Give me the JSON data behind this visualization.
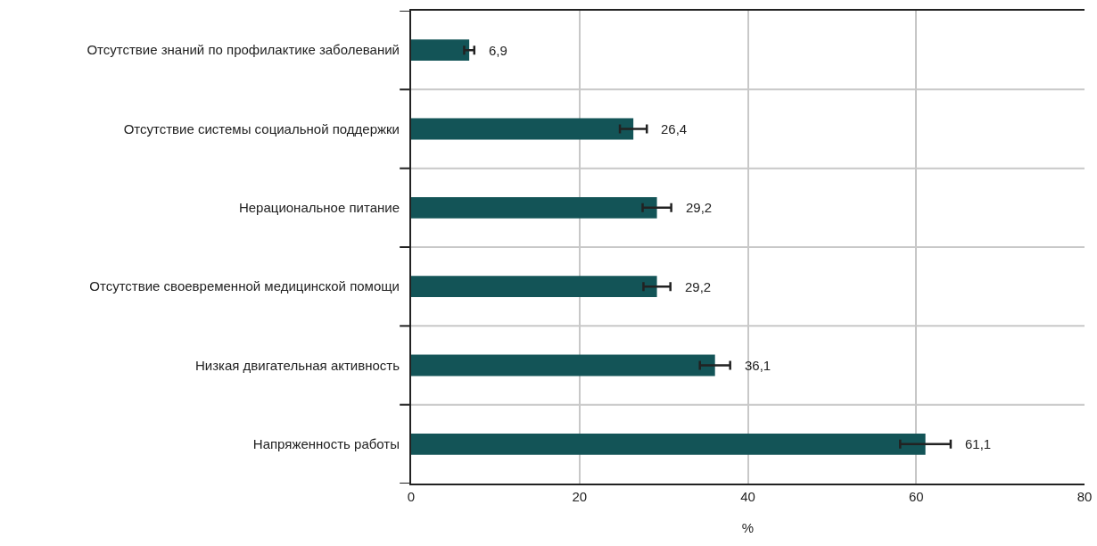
{
  "chart_data": {
    "type": "bar",
    "orientation": "horizontal",
    "xlabel": "%",
    "categories": [
      "Отсутствие знаний по профилактике заболеваний",
      "Отсутствие системы социальной поддержки",
      "Нерациональное питание",
      "Отсутствие своевременной медицинской помощи",
      "Низкая двигательная активность",
      "Напряженность работы"
    ],
    "values": [
      6.9,
      26.4,
      29.2,
      29.2,
      36.1,
      61.1
    ],
    "errors": [
      0.6,
      1.6,
      1.7,
      1.6,
      1.8,
      3.0
    ],
    "value_labels": [
      "6,9",
      "26,4",
      "29,2",
      "29,2",
      "36,1",
      "61,1"
    ],
    "color": "#135457",
    "xlim": [
      0,
      80
    ],
    "xticks": [
      0,
      20,
      40,
      60,
      80
    ],
    "grid": true
  }
}
